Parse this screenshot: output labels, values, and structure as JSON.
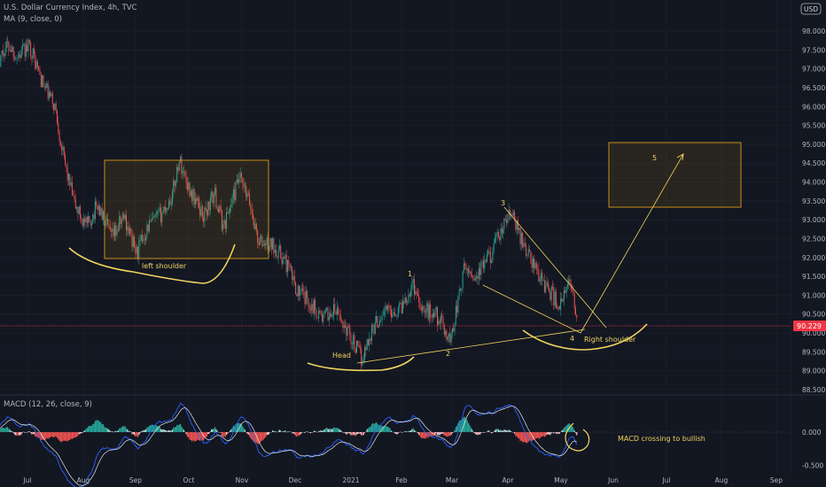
{
  "header": {
    "symbol_line": "U.S. Dollar Currency Index, 4h, TVC",
    "indicator_line": "MA (9, close, 0)",
    "currency_badge": "USD"
  },
  "macd": {
    "legend": "MACD (12, 26, close, 9)"
  },
  "price_label": "90.229",
  "colors": {
    "background": "#131722",
    "up": "#26a69a",
    "down": "#ef5350",
    "annotation": "#f0d35f",
    "box_border": "#c98d19",
    "macd_line": "#2962ff",
    "signal_line": "#e6e6e6",
    "price_line": "#f23645"
  },
  "chart_data": [
    {
      "type": "candlestick",
      "title": "U.S. Dollar Currency Index, 4h, TVC",
      "x_ticks": [
        "Jul",
        "Aug",
        "Sep",
        "Oct",
        "Nov",
        "Dec",
        "2021",
        "Feb",
        "Mar",
        "Apr",
        "May",
        "Jun",
        "Jul",
        "Aug",
        "Sep"
      ],
      "y_ticks": [
        "98.000",
        "97.500",
        "97.000",
        "96.500",
        "96.000",
        "95.500",
        "95.000",
        "94.500",
        "94.000",
        "93.500",
        "93.000",
        "92.500",
        "92.000",
        "91.500",
        "91.000",
        "90.500",
        "90.000",
        "89.500",
        "89.000",
        "88.500"
      ],
      "ylim": [
        88.3,
        98.4
      ],
      "last_price": 90.229,
      "price_path": [
        [
          "2020-06-25",
          97.3
        ],
        [
          "2020-07-03",
          97.6
        ],
        [
          "2020-07-10",
          96.6
        ],
        [
          "2020-07-17",
          96.0
        ],
        [
          "2020-07-22",
          94.6
        ],
        [
          "2020-07-28",
          93.4
        ],
        [
          "2020-08-04",
          92.8
        ],
        [
          "2020-08-10",
          93.4
        ],
        [
          "2020-08-18",
          92.5
        ],
        [
          "2020-08-25",
          93.1
        ],
        [
          "2020-09-01",
          92.1
        ],
        [
          "2020-09-07",
          92.8
        ],
        [
          "2020-09-14",
          93.1
        ],
        [
          "2020-09-21",
          93.6
        ],
        [
          "2020-09-25",
          94.6
        ],
        [
          "2020-10-01",
          93.8
        ],
        [
          "2020-10-09",
          93.1
        ],
        [
          "2020-10-15",
          93.7
        ],
        [
          "2020-10-20",
          92.8
        ],
        [
          "2020-10-29",
          94.1
        ],
        [
          "2020-11-04",
          93.4
        ],
        [
          "2020-11-09",
          92.4
        ],
        [
          "2020-11-18",
          92.3
        ],
        [
          "2020-11-25",
          91.8
        ],
        [
          "2020-12-01",
          91.1
        ],
        [
          "2020-12-08",
          90.8
        ],
        [
          "2020-12-15",
          90.4
        ],
        [
          "2020-12-22",
          90.6
        ],
        [
          "2020-12-31",
          89.9
        ],
        [
          "2021-01-06",
          89.3
        ],
        [
          "2021-01-12",
          90.1
        ],
        [
          "2021-01-19",
          90.6
        ],
        [
          "2021-01-27",
          90.6
        ],
        [
          "2021-02-04",
          91.3
        ],
        [
          "2021-02-10",
          90.6
        ],
        [
          "2021-02-17",
          90.5
        ],
        [
          "2021-02-25",
          89.8
        ],
        [
          "2021-03-05",
          91.7
        ],
        [
          "2021-03-12",
          91.5
        ],
        [
          "2021-03-20",
          92.1
        ],
        [
          "2021-03-31",
          93.2
        ],
        [
          "2021-04-07",
          92.4
        ],
        [
          "2021-04-14",
          91.7
        ],
        [
          "2021-04-22",
          91.1
        ],
        [
          "2021-04-28",
          90.7
        ],
        [
          "2021-05-04",
          91.4
        ],
        [
          "2021-05-08",
          90.2
        ]
      ]
    },
    {
      "type": "line",
      "title": "MACD (12, 26, close, 9)",
      "y_ticks": [
        "0.000",
        "-0.500"
      ]
    }
  ],
  "annotations": {
    "left_shoulder": "left shoulder",
    "head": "Head",
    "right_shoulder": "Right shoulder",
    "wave_1": "1",
    "wave_2": "2",
    "wave_3": "3",
    "wave_4": "4",
    "wave_5": "5",
    "macd_note": "MACD crossing to bullish"
  }
}
